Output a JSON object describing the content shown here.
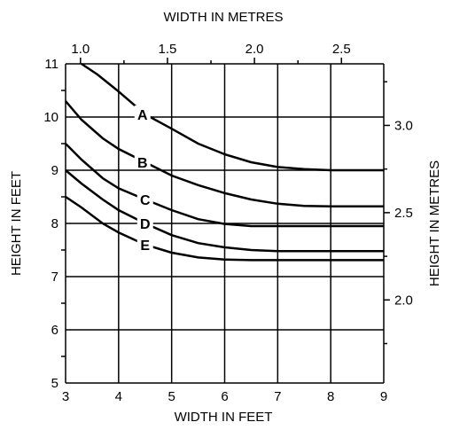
{
  "chart_data": {
    "type": "line",
    "xlabel": "WIDTH IN FEET",
    "ylabel": "HEIGHT IN FEET",
    "x2label": "WIDTH IN METRES",
    "y2label": "HEIGHT IN METRES",
    "xlim": [
      3,
      9
    ],
    "ylim": [
      5,
      11
    ],
    "grid": true,
    "xticks": [
      "3",
      "4",
      "5",
      "6",
      "7",
      "8",
      "9"
    ],
    "yticks": [
      "5",
      "6",
      "7",
      "8",
      "9",
      "10",
      "11"
    ],
    "x2ticks": [
      {
        "value": 1.0,
        "label": "1.0"
      },
      {
        "value": 1.5,
        "label": "1.5"
      },
      {
        "value": 2.0,
        "label": "2.0"
      },
      {
        "value": 2.5,
        "label": "2.5"
      }
    ],
    "y2ticks": [
      {
        "value": 2.0,
        "label": "2.0"
      },
      {
        "value": 2.5,
        "label": "2.5"
      },
      {
        "value": 3.0,
        "label": "3.0"
      }
    ],
    "series": [
      {
        "name": "A",
        "label_at": [
          4.45,
          10.05
        ],
        "points": [
          [
            3.3,
            11.0
          ],
          [
            3.6,
            10.8
          ],
          [
            4.0,
            10.48
          ],
          [
            4.5,
            10.05
          ],
          [
            5.0,
            9.78
          ],
          [
            5.5,
            9.5
          ],
          [
            6.0,
            9.3
          ],
          [
            6.5,
            9.15
          ],
          [
            7.0,
            9.06
          ],
          [
            7.5,
            9.02
          ],
          [
            8.0,
            9.0
          ],
          [
            9.0,
            9.0
          ]
        ]
      },
      {
        "name": "B",
        "label_at": [
          4.45,
          9.15
        ],
        "points": [
          [
            3.0,
            10.3
          ],
          [
            3.3,
            9.95
          ],
          [
            3.7,
            9.6
          ],
          [
            4.0,
            9.4
          ],
          [
            4.5,
            9.15
          ],
          [
            5.0,
            8.9
          ],
          [
            5.5,
            8.72
          ],
          [
            6.0,
            8.57
          ],
          [
            6.5,
            8.45
          ],
          [
            7.0,
            8.37
          ],
          [
            7.5,
            8.33
          ],
          [
            8.0,
            8.32
          ],
          [
            9.0,
            8.32
          ]
        ]
      },
      {
        "name": "C",
        "label_at": [
          4.5,
          8.45
        ],
        "points": [
          [
            3.0,
            9.5
          ],
          [
            3.3,
            9.2
          ],
          [
            3.7,
            8.85
          ],
          [
            4.0,
            8.66
          ],
          [
            4.5,
            8.45
          ],
          [
            5.0,
            8.25
          ],
          [
            5.5,
            8.08
          ],
          [
            6.0,
            7.99
          ],
          [
            6.5,
            7.95
          ],
          [
            7.0,
            7.95
          ],
          [
            9.0,
            7.95
          ]
        ]
      },
      {
        "name": "D",
        "label_at": [
          4.5,
          8.0
        ],
        "points": [
          [
            3.0,
            9.0
          ],
          [
            3.3,
            8.75
          ],
          [
            3.7,
            8.45
          ],
          [
            4.0,
            8.25
          ],
          [
            4.5,
            8.0
          ],
          [
            5.0,
            7.78
          ],
          [
            5.5,
            7.63
          ],
          [
            6.0,
            7.55
          ],
          [
            6.5,
            7.5
          ],
          [
            7.0,
            7.48
          ],
          [
            9.0,
            7.48
          ]
        ]
      },
      {
        "name": "E",
        "label_at": [
          4.5,
          7.6
        ],
        "points": [
          [
            3.0,
            8.5
          ],
          [
            3.3,
            8.3
          ],
          [
            3.7,
            8.0
          ],
          [
            4.0,
            7.83
          ],
          [
            4.5,
            7.6
          ],
          [
            5.0,
            7.45
          ],
          [
            5.5,
            7.36
          ],
          [
            6.0,
            7.32
          ],
          [
            6.5,
            7.31
          ],
          [
            9.0,
            7.31
          ]
        ]
      }
    ]
  }
}
